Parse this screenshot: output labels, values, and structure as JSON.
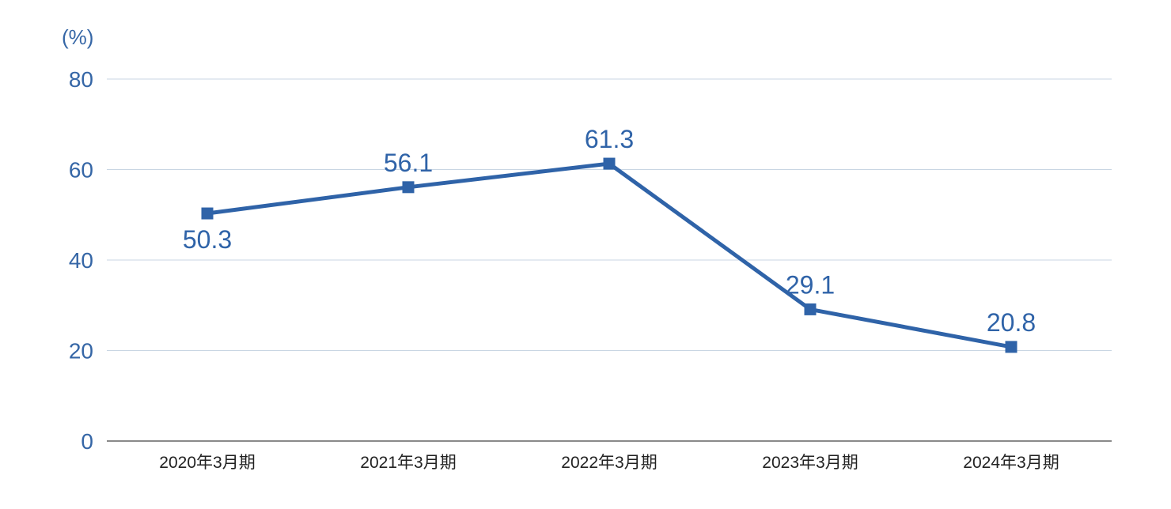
{
  "chart_data": {
    "type": "line",
    "unit_label": "(%)",
    "categories": [
      "2020年3月期",
      "2021年3月期",
      "2022年3月期",
      "2023年3月期",
      "2024年3月期"
    ],
    "series": [
      {
        "values": [
          50.3,
          56.1,
          61.3,
          29.1,
          20.8
        ]
      }
    ],
    "data_labels": [
      "50.3",
      "56.1",
      "61.3",
      "29.1",
      "20.8"
    ],
    "yticks": [
      0,
      20,
      40,
      60,
      80
    ],
    "ylim": [
      0,
      80
    ],
    "grid": true,
    "colors": {
      "line": "#2f63a8",
      "axis_text": "#3566a6",
      "grid": "#c9d6e3",
      "baseline": "#444444"
    }
  }
}
